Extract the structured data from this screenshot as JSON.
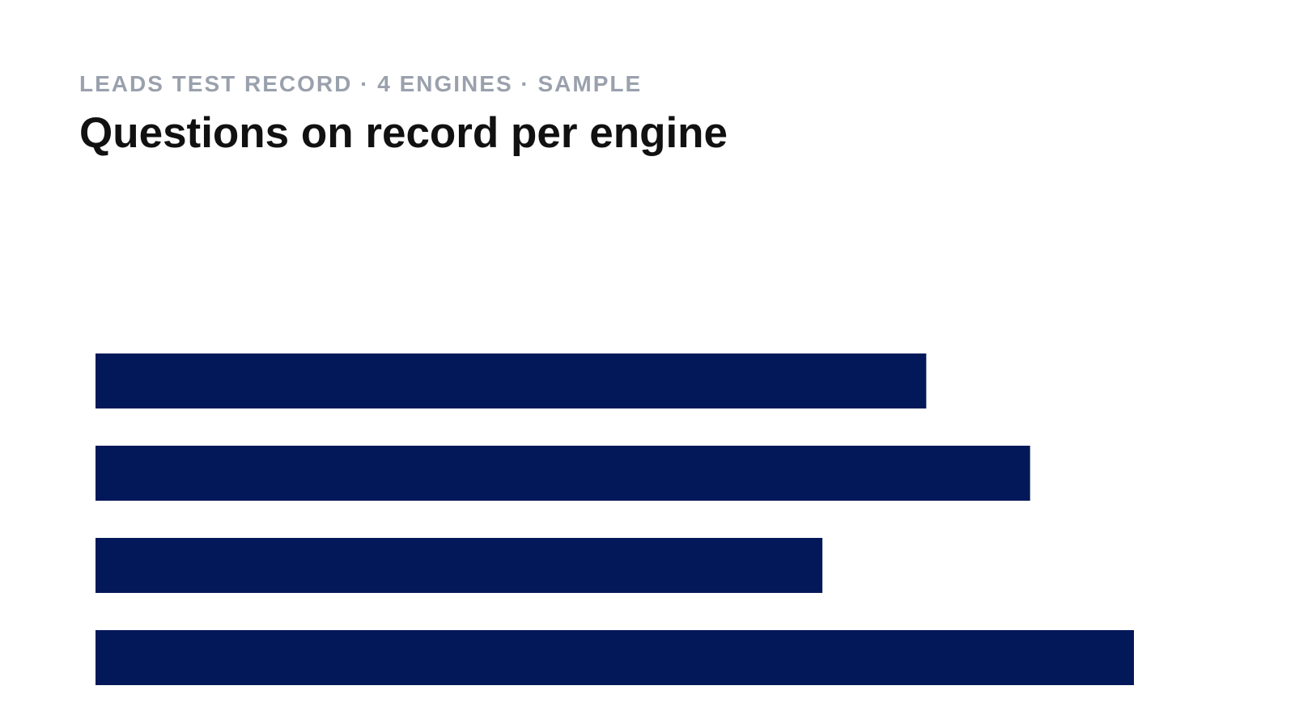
{
  "chart_data": {
    "type": "bar",
    "orientation": "horizontal",
    "subtitle": "LEADS TEST RECORD · 4 ENGINES · SAMPLE",
    "title": "Questions on record per engine",
    "categories": [
      null,
      null,
      null,
      null
    ],
    "values": [
      80,
      90,
      70,
      100
    ],
    "color": "#021859",
    "xlim": [
      0,
      100
    ]
  }
}
